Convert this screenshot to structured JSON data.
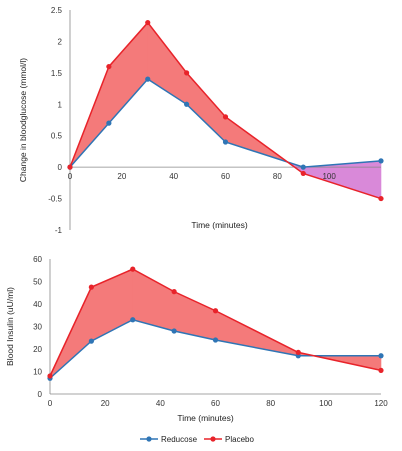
{
  "chart_data": [
    {
      "type": "line",
      "title": "",
      "xlabel": "Time (minutes)",
      "ylabel": "Change in bloodglucose (mmol/l)",
      "x": [
        0,
        15,
        30,
        45,
        60,
        90,
        120
      ],
      "xticks": [
        0,
        20,
        40,
        60,
        80,
        100
      ],
      "xtick_labels": [
        "0",
        "20",
        "40",
        "60",
        "80",
        "100"
      ],
      "yticks": [
        -1,
        -0.5,
        0,
        0.5,
        1,
        1.5,
        2,
        2.5
      ],
      "ytick_labels": [
        "-1",
        "-0.5",
        "0",
        "0.5",
        "1",
        "1.5",
        "2",
        "2.5"
      ],
      "xlim": [
        0,
        120
      ],
      "ylim": [
        -1,
        2.5
      ],
      "grid": false,
      "series": [
        {
          "name": "Reducose",
          "values": [
            0,
            0.7,
            1.4,
            1.0,
            0.4,
            0.0,
            0.1
          ],
          "color": "#2f75b5"
        },
        {
          "name": "Placebo",
          "values": [
            0,
            1.6,
            2.3,
            1.5,
            0.8,
            -0.1,
            -0.5
          ],
          "color": "#e8232a"
        }
      ],
      "fills": {
        "placebo_above": "#f47a7a",
        "reducose_above": "#d989d9"
      }
    },
    {
      "type": "line",
      "title": "",
      "xlabel": "Time (minutes)",
      "ylabel": "Blood Insulin (uU/ml)",
      "x": [
        0,
        15,
        30,
        45,
        60,
        90,
        120
      ],
      "xticks": [
        0,
        20,
        40,
        60,
        80,
        100,
        120
      ],
      "xtick_labels": [
        "0",
        "20",
        "40",
        "60",
        "80",
        "100",
        "120"
      ],
      "yticks": [
        0,
        10,
        20,
        30,
        40,
        50,
        60
      ],
      "ytick_labels": [
        "0",
        "10",
        "20",
        "30",
        "40",
        "50",
        "60"
      ],
      "xlim": [
        0,
        120
      ],
      "ylim": [
        0,
        60
      ],
      "grid": false,
      "series": [
        {
          "name": "Reducose",
          "values": [
            7,
            23.5,
            33,
            28,
            24,
            17,
            17
          ],
          "color": "#2f75b5"
        },
        {
          "name": "Placebo",
          "values": [
            8,
            47.5,
            55.5,
            45.5,
            37,
            18.5,
            10.5
          ],
          "color": "#e8232a"
        }
      ],
      "fills": {
        "placebo_above": "#f47a7a"
      }
    }
  ],
  "legend": {
    "placement": "bottom-center",
    "items": [
      {
        "label": "Reducose",
        "color": "#2f75b5"
      },
      {
        "label": "Placebo",
        "color": "#e8232a"
      }
    ]
  }
}
